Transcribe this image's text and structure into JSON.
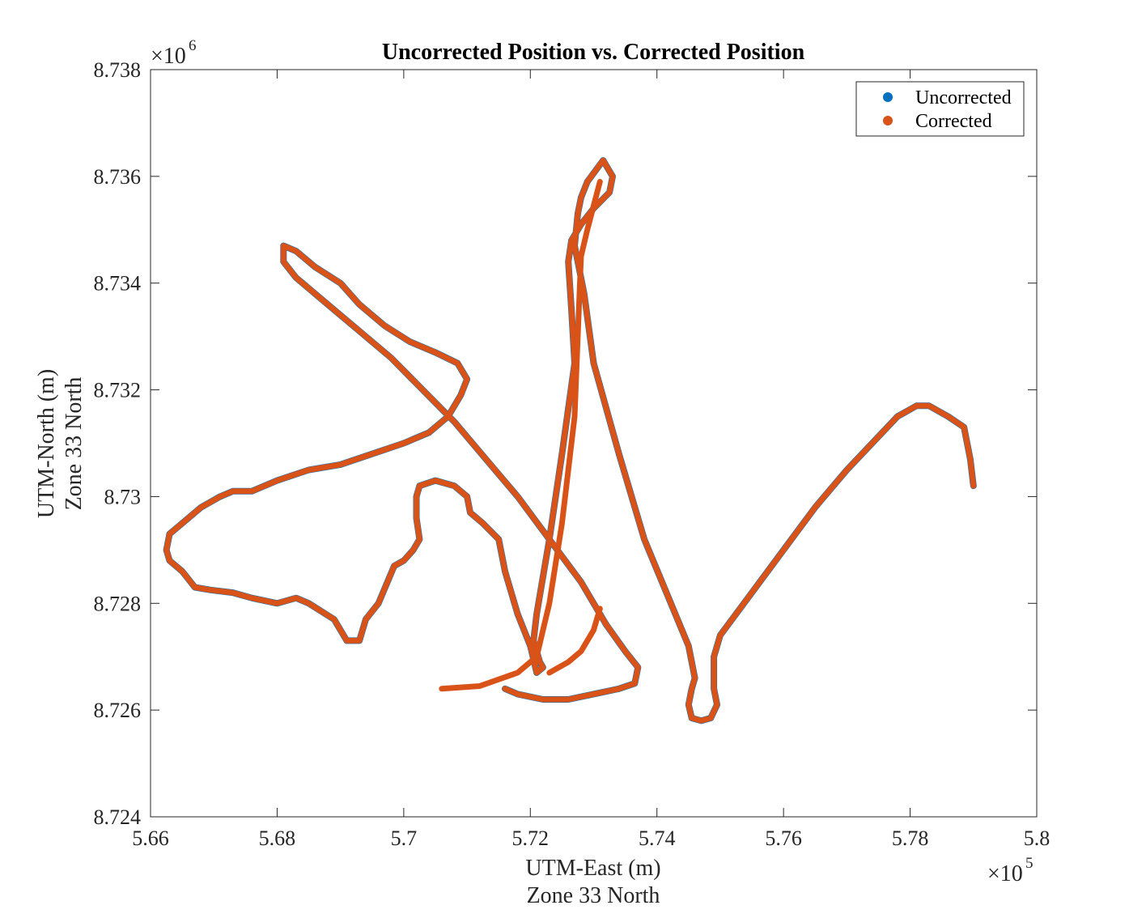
{
  "chart_data": {
    "type": "line",
    "title": "Uncorrected Position vs. Corrected Position",
    "xlabel": [
      "UTM-East (m)",
      "Zone 33 North"
    ],
    "ylabel": [
      "UTM-North (m)",
      "Zone 33 North"
    ],
    "xlim": [
      566000,
      580000
    ],
    "ylim": [
      8724000,
      8738000
    ],
    "xticks": [
      566000,
      568000,
      570000,
      572000,
      574000,
      576000,
      578000,
      580000
    ],
    "xtick_labels": [
      "5.66",
      "5.68",
      "5.7",
      "5.72",
      "5.74",
      "5.76",
      "5.78",
      "5.8"
    ],
    "yticks": [
      8724000,
      8726000,
      8728000,
      8730000,
      8732000,
      8734000,
      8736000,
      8738000
    ],
    "ytick_labels": [
      "8.724",
      "8.726",
      "8.728",
      "8.73",
      "8.732",
      "8.734",
      "8.736",
      "8.738"
    ],
    "x_exponent": "×10",
    "x_exponent_power": "5",
    "y_exponent": "×10",
    "y_exponent_power": "6",
    "legend_position": "top-right",
    "grid": false,
    "series": [
      {
        "name": "Uncorrected",
        "color": "#0072BD",
        "x": [
          579000,
          578950,
          578900,
          578850,
          578600,
          578300,
          578100,
          577800,
          577000,
          576500,
          576000,
          575500,
          575000,
          574900,
          574900,
          574950,
          574850,
          574700,
          574550,
          574500,
          574550,
          574600,
          574500,
          573800,
          573400,
          573000,
          572850,
          572700,
          572750,
          572800,
          572900,
          573150,
          573300,
          573250,
          573000,
          572800,
          572650,
          572600,
          572650,
          572700,
          572500,
          572300,
          572100,
          572050,
          572150,
          572200,
          572100,
          572000,
          571800,
          571600,
          571500,
          571250,
          571050,
          571000,
          570800,
          570500,
          570250,
          570200,
          570200,
          570250,
          570150,
          570000,
          569850,
          569600,
          569400,
          569350,
          569300,
          569100,
          568900,
          568500,
          568300,
          568000,
          567600,
          567300,
          566950,
          566700,
          566500,
          566300,
          566250,
          566300,
          566500,
          566800,
          567100,
          567300,
          567600,
          568000,
          568500,
          569000,
          569500,
          570000,
          570400,
          570700,
          570900,
          571000,
          570850,
          570500,
          570100,
          569700,
          569300,
          569000,
          568600,
          568300,
          568100,
          568100,
          568300,
          568600,
          568900,
          569300,
          569800,
          570300,
          570800,
          571300,
          571800,
          572300,
          572800,
          573200,
          573500,
          573700,
          573650,
          573400,
          573000,
          572600,
          572200,
          571800,
          571600
        ],
        "y": [
          8730200,
          8730700,
          8731000,
          8731300,
          8731500,
          8731700,
          8731700,
          8731500,
          8730500,
          8729800,
          8729000,
          8728200,
          8727400,
          8727000,
          8726400,
          8726100,
          8725850,
          8725800,
          8725850,
          8726100,
          8726400,
          8726600,
          8727200,
          8729200,
          8730800,
          8732500,
          8733800,
          8734700,
          8735300,
          8735600,
          8735900,
          8736300,
          8736000,
          8735700,
          8735400,
          8735100,
          8734800,
          8734400,
          8733500,
          8732500,
          8730800,
          8729200,
          8727800,
          8727300,
          8726900,
          8726800,
          8726700,
          8727200,
          8727800,
          8728600,
          8729200,
          8729500,
          8729700,
          8730000,
          8730200,
          8730300,
          8730200,
          8730000,
          8729600,
          8729200,
          8729000,
          8728800,
          8728700,
          8728000,
          8727700,
          8727500,
          8727300,
          8727300,
          8727700,
          8728000,
          8728100,
          8728000,
          8728100,
          8728200,
          8728250,
          8728300,
          8728600,
          8728800,
          8729000,
          8729300,
          8729500,
          8729800,
          8730000,
          8730100,
          8730100,
          8730300,
          8730500,
          8730600,
          8730800,
          8731000,
          8731200,
          8731500,
          8731900,
          8732200,
          8732500,
          8732700,
          8732900,
          8733200,
          8733600,
          8734000,
          8734300,
          8734600,
          8734700,
          8734400,
          8734100,
          8733800,
          8733500,
          8733100,
          8732600,
          8732000,
          8731400,
          8730700,
          8730000,
          8729200,
          8728400,
          8727600,
          8727100,
          8726800,
          8726500,
          8726400,
          8726300,
          8726200,
          8726200,
          8726300,
          8726400
        ]
      },
      {
        "name": "Corrected",
        "color": "#D95319",
        "x": [
          579000,
          578950,
          578900,
          578850,
          578600,
          578300,
          578100,
          577800,
          577000,
          576500,
          576000,
          575500,
          575000,
          574900,
          574900,
          574950,
          574850,
          574700,
          574550,
          574500,
          574550,
          574600,
          574500,
          573800,
          573400,
          573000,
          572850,
          572700,
          572750,
          572800,
          572900,
          573150,
          573300,
          573250,
          573000,
          572800,
          572650,
          572600,
          572650,
          572700,
          572500,
          572300,
          572100,
          572050,
          572150,
          572200,
          572100,
          572000,
          571800,
          571600,
          571500,
          571250,
          571050,
          571000,
          570800,
          570500,
          570250,
          570200,
          570200,
          570250,
          570150,
          570000,
          569850,
          569600,
          569400,
          569350,
          569300,
          569100,
          568900,
          568500,
          568300,
          568000,
          567600,
          567300,
          566950,
          566700,
          566500,
          566300,
          566250,
          566300,
          566500,
          566800,
          567100,
          567300,
          567600,
          568000,
          568500,
          569000,
          569500,
          570000,
          570400,
          570700,
          570900,
          571000,
          570850,
          570500,
          570100,
          569700,
          569300,
          569000,
          568600,
          568300,
          568100,
          568100,
          568300,
          568600,
          568900,
          569300,
          569800,
          570300,
          570800,
          571300,
          571800,
          572300,
          572800,
          573200,
          573500,
          573700,
          573650,
          573400,
          573000,
          572600,
          572200,
          571800,
          571600
        ],
        "y": [
          8730200,
          8730700,
          8731000,
          8731300,
          8731500,
          8731700,
          8731700,
          8731500,
          8730500,
          8729800,
          8729000,
          8728200,
          8727400,
          8727000,
          8726400,
          8726100,
          8725850,
          8725800,
          8725850,
          8726100,
          8726400,
          8726600,
          8727200,
          8729200,
          8730800,
          8732500,
          8733800,
          8734700,
          8735300,
          8735600,
          8735900,
          8736300,
          8736000,
          8735700,
          8735400,
          8735100,
          8734800,
          8734400,
          8733500,
          8732500,
          8730800,
          8729200,
          8727800,
          8727300,
          8726900,
          8726800,
          8726700,
          8727200,
          8727800,
          8728600,
          8729200,
          8729500,
          8729700,
          8730000,
          8730200,
          8730300,
          8730200,
          8730000,
          8729600,
          8729200,
          8729000,
          8728800,
          8728700,
          8728000,
          8727700,
          8727500,
          8727300,
          8727300,
          8727700,
          8728000,
          8728100,
          8728000,
          8728100,
          8728200,
          8728250,
          8728300,
          8728600,
          8728800,
          8729000,
          8729300,
          8729500,
          8729800,
          8730000,
          8730100,
          8730100,
          8730300,
          8730500,
          8730600,
          8730800,
          8731000,
          8731200,
          8731500,
          8731900,
          8732200,
          8732500,
          8732700,
          8732900,
          8733200,
          8733600,
          8734000,
          8734300,
          8734600,
          8734700,
          8734400,
          8734100,
          8733800,
          8733500,
          8733100,
          8732600,
          8732000,
          8731400,
          8730700,
          8730000,
          8729200,
          8728400,
          8727600,
          8727100,
          8726800,
          8726500,
          8726400,
          8726300,
          8726200,
          8726200,
          8726300,
          8726400
        ]
      }
    ],
    "extra_segments_corrected": [
      {
        "x": [
          570600,
          571200,
          571800,
          572100,
          572300,
          572500,
          572700,
          572750,
          572800,
          572900,
          573100
        ],
        "y": [
          8726400,
          8726450,
          8726700,
          8727000,
          8728000,
          8729500,
          8731500,
          8733000,
          8734500,
          8735000,
          8735900
        ]
      },
      {
        "x": [
          573100,
          573000,
          572800,
          572600,
          572300
        ],
        "y": [
          8727900,
          8727500,
          8727100,
          8726900,
          8726700
        ]
      }
    ]
  }
}
